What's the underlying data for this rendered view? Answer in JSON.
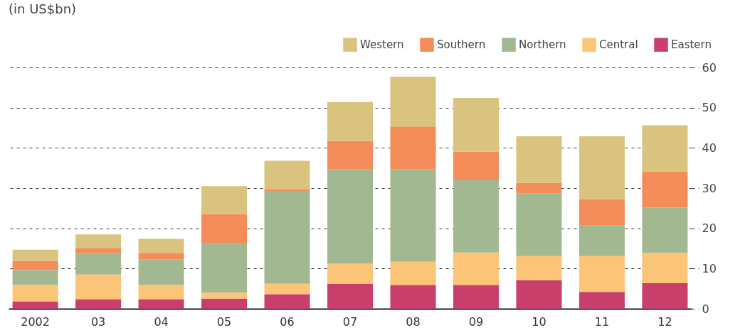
{
  "chart_data": {
    "type": "bar",
    "subtitle": "(in US$bn)",
    "stacked": true,
    "categories": [
      "2002",
      "03",
      "04",
      "05",
      "06",
      "07",
      "08",
      "09",
      "10",
      "11",
      "12"
    ],
    "series": [
      {
        "name": "Eastern",
        "color": "#c73f6a",
        "values": [
          1.8,
          2.4,
          2.4,
          2.5,
          3.6,
          6.2,
          5.9,
          5.9,
          7.1,
          4.2,
          6.4
        ]
      },
      {
        "name": "Central",
        "color": "#fbc477",
        "values": [
          4.1,
          6.1,
          3.5,
          1.5,
          2.6,
          5.0,
          5.8,
          8.1,
          6.0,
          8.9,
          7.5
        ]
      },
      {
        "name": "Northern",
        "color": "#a1b891",
        "values": [
          3.7,
          5.3,
          6.4,
          12.3,
          23.1,
          23.5,
          23.0,
          18.1,
          15.6,
          7.6,
          11.3
        ]
      },
      {
        "name": "Southern",
        "color": "#f48c59",
        "values": [
          2.3,
          1.2,
          1.6,
          7.2,
          0.5,
          7.0,
          10.6,
          7.0,
          2.6,
          6.5,
          8.9
        ]
      },
      {
        "name": "Western",
        "color": "#dac37e",
        "values": [
          2.8,
          3.5,
          3.5,
          7.0,
          7.0,
          9.7,
          12.4,
          13.3,
          11.6,
          15.7,
          11.5
        ]
      }
    ],
    "ylim": [
      0,
      60
    ],
    "yticks": [
      0,
      10,
      20,
      30,
      40,
      50,
      60
    ],
    "grid": "y",
    "legend": "top right"
  }
}
